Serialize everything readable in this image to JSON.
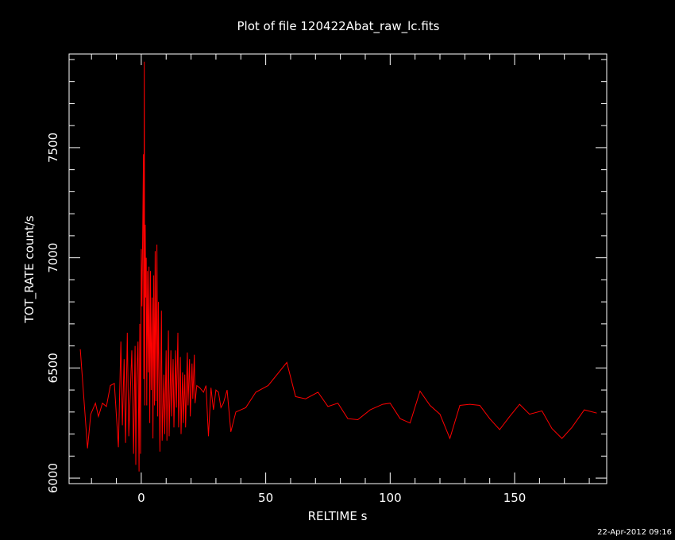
{
  "title": "Plot of file 120422Abat_raw_lc.fits",
  "timestamp": "22-Apr-2012 09:16",
  "colors": {
    "background": "#000000",
    "axes": "#ffffff",
    "series": "#ff0000"
  },
  "chart_data": {
    "type": "line",
    "title": "Plot of file 120422Abat_raw_lc.fits",
    "xlabel": "RELTIME   s",
    "ylabel": "TOT_RATE   count/s",
    "xlim": [
      -29,
      187
    ],
    "ylim": [
      5975,
      7925
    ],
    "x_ticks": [
      "0",
      "50",
      "100",
      "150"
    ],
    "y_ticks": [
      "6000",
      "6500",
      "7000",
      "7500"
    ],
    "grid": false,
    "legend": "none",
    "series": [
      {
        "color": "#ff0000",
        "points": [
          [
            -24.5,
            6585
          ],
          [
            -21.6,
            6135
          ],
          [
            -20.3,
            6290
          ],
          [
            -18.4,
            6340
          ],
          [
            -17.2,
            6280
          ],
          [
            -15.6,
            6340
          ],
          [
            -14.0,
            6325
          ],
          [
            -12.4,
            6420
          ],
          [
            -10.8,
            6430
          ],
          [
            -9.2,
            6140
          ],
          [
            -8.2,
            6620
          ],
          [
            -7.6,
            6240
          ],
          [
            -6.9,
            6540
          ],
          [
            -6.3,
            6160
          ],
          [
            -5.6,
            6660
          ],
          [
            -5.0,
            6190
          ],
          [
            -4.4,
            6390
          ],
          [
            -3.8,
            6580
          ],
          [
            -3.1,
            6110
          ],
          [
            -2.5,
            6600
          ],
          [
            -2.2,
            6060
          ],
          [
            -1.9,
            6420
          ],
          [
            -1.3,
            6620
          ],
          [
            -0.9,
            6030
          ],
          [
            -0.6,
            6700
          ],
          [
            -0.3,
            6110
          ],
          [
            0.0,
            7040
          ],
          [
            0.3,
            6780
          ],
          [
            0.6,
            7160
          ],
          [
            0.9,
            7470
          ],
          [
            1.0,
            6450
          ],
          [
            1.2,
            7890
          ],
          [
            1.4,
            6330
          ],
          [
            1.6,
            7150
          ],
          [
            1.8,
            6820
          ],
          [
            2.0,
            7000
          ],
          [
            2.2,
            6330
          ],
          [
            2.5,
            6940
          ],
          [
            2.8,
            6480
          ],
          [
            3.1,
            6960
          ],
          [
            3.4,
            6250
          ],
          [
            3.7,
            6940
          ],
          [
            4.0,
            6400
          ],
          [
            4.4,
            6820
          ],
          [
            4.7,
            6180
          ],
          [
            5.0,
            6920
          ],
          [
            5.3,
            6330
          ],
          [
            5.6,
            7030
          ],
          [
            5.9,
            6350
          ],
          [
            6.3,
            7060
          ],
          [
            6.6,
            6280
          ],
          [
            6.9,
            6800
          ],
          [
            7.2,
            6410
          ],
          [
            7.5,
            6120
          ],
          [
            8.1,
            6760
          ],
          [
            8.4,
            6170
          ],
          [
            9.1,
            6470
          ],
          [
            9.4,
            6200
          ],
          [
            10.0,
            6580
          ],
          [
            10.3,
            6170
          ],
          [
            10.9,
            6670
          ],
          [
            11.2,
            6190
          ],
          [
            11.9,
            6580
          ],
          [
            12.2,
            6280
          ],
          [
            12.8,
            6540
          ],
          [
            13.1,
            6230
          ],
          [
            13.8,
            6580
          ],
          [
            14.1,
            6320
          ],
          [
            14.7,
            6660
          ],
          [
            15.0,
            6230
          ],
          [
            15.7,
            6550
          ],
          [
            16.0,
            6200
          ],
          [
            16.6,
            6480
          ],
          [
            16.9,
            6250
          ],
          [
            17.5,
            6470
          ],
          [
            17.8,
            6230
          ],
          [
            18.5,
            6570
          ],
          [
            18.8,
            6330
          ],
          [
            19.4,
            6540
          ],
          [
            19.7,
            6280
          ],
          [
            20.4,
            6520
          ],
          [
            20.7,
            6360
          ],
          [
            21.3,
            6560
          ],
          [
            21.6,
            6340
          ],
          [
            22.3,
            6420
          ],
          [
            23.5,
            6410
          ],
          [
            25.0,
            6390
          ],
          [
            26.0,
            6420
          ],
          [
            27.0,
            6190
          ],
          [
            28.0,
            6410
          ],
          [
            29.0,
            6310
          ],
          [
            30.0,
            6400
          ],
          [
            31.0,
            6390
          ],
          [
            32.0,
            6320
          ],
          [
            33.0,
            6340
          ],
          [
            34.5,
            6400
          ],
          [
            36.0,
            6210
          ],
          [
            38.0,
            6300
          ],
          [
            42.0,
            6320
          ],
          [
            46.0,
            6390
          ],
          [
            51.0,
            6420
          ],
          [
            58.5,
            6525
          ],
          [
            62.0,
            6370
          ],
          [
            66.0,
            6360
          ],
          [
            71.0,
            6390
          ],
          [
            75.0,
            6325
          ],
          [
            79.0,
            6340
          ],
          [
            83.0,
            6270
          ],
          [
            87.0,
            6265
          ],
          [
            92.0,
            6310
          ],
          [
            97.0,
            6335
          ],
          [
            100.0,
            6340
          ],
          [
            104.0,
            6270
          ],
          [
            108.0,
            6250
          ],
          [
            112.0,
            6395
          ],
          [
            116.0,
            6330
          ],
          [
            120.0,
            6290
          ],
          [
            124.0,
            6180
          ],
          [
            128.0,
            6330
          ],
          [
            132.0,
            6335
          ],
          [
            136.0,
            6330
          ],
          [
            140.0,
            6270
          ],
          [
            144.0,
            6220
          ],
          [
            148.0,
            6280
          ],
          [
            152.0,
            6335
          ],
          [
            156.0,
            6290
          ],
          [
            161.0,
            6305
          ],
          [
            165.0,
            6225
          ],
          [
            169.0,
            6180
          ],
          [
            173.0,
            6230
          ],
          [
            178.0,
            6310
          ],
          [
            183.0,
            6295
          ]
        ]
      }
    ]
  }
}
